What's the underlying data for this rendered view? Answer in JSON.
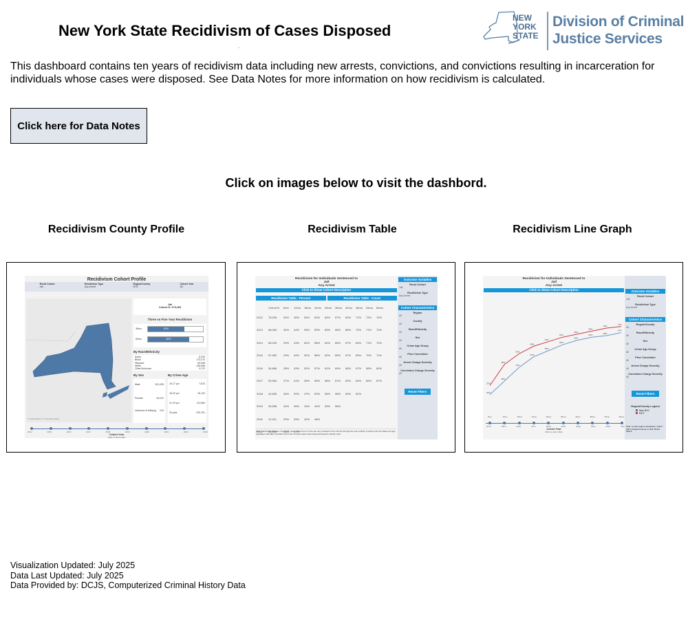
{
  "header": {
    "title": "New York State Recidivism of Cases Disposed",
    "subtitle_marker": "..",
    "logo": {
      "state_text": [
        "NEW",
        "YORK",
        "STATE"
      ],
      "agency_line1": "Division of Criminal",
      "agency_line2": "Justice Services",
      "color": "#5a7fa3"
    }
  },
  "intro": "This dashboard contains ten years of recidivism data including new arrests, convictions, and convictions resulting in incarceration for individuals whose cases were disposed. See Data Notes for more information on how recidivism is calculated.",
  "data_notes_button": "Click here for Data Notes",
  "click_hint": "Click on images below to visit the dashbord.",
  "dashboards": [
    {
      "title": "Recidivism County Profile",
      "preview": {
        "heading": "Recidivism Cohort Profile",
        "filters": [
          {
            "label": "Recid Cohort",
            "value": "Jail"
          },
          {
            "label": "Recidivism Type",
            "value": "Any Arrest"
          },
          {
            "label": "Region/County",
            "value": "NYS"
          },
          {
            "label": "Cohort Year",
            "value": "All"
          }
        ],
        "cohort_box": {
          "line1": "Jail",
          "line2": "Cohort N: 375,265"
        },
        "three_vs_five_title": "Three vs Five Year Recidivism",
        "bars": [
          {
            "label": "36mo",
            "value": "62%",
            "pct": 62
          },
          {
            "label": "60mo",
            "value": "69%",
            "pct": 69
          }
        ],
        "race_title": "By Race/Ethnicity",
        "race": [
          {
            "label": "Asian",
            "value": "8,229"
          },
          {
            "label": "Black",
            "value": "173,270"
          },
          {
            "label": "Hispanic",
            "value": "84,938"
          },
          {
            "label": "White",
            "value": "105,658"
          },
          {
            "label": "Other/Unknown",
            "value": "3,170"
          }
        ],
        "sex_title": "By Sex",
        "sex": [
          {
            "label": "Male",
            "value": "321,035"
          },
          {
            "label": "Female",
            "value": "54,011"
          },
          {
            "label": "Unknown & Missing",
            "value": "219"
          }
        ],
        "age_title": "By Crime Age",
        "age": [
          {
            "label": "16-17 yrs",
            "value": "7,810"
          },
          {
            "label": "18-20 yrs",
            "value": "26,120"
          },
          {
            "label": "21-29 yrs",
            "value": "111,584"
          },
          {
            "label": "30 plus",
            "value": "229,751"
          }
        ],
        "years": [
          "2014",
          "2015",
          "2016",
          "2017",
          "2018",
          "2019",
          "2020",
          "2021",
          "2022",
          "2023"
        ],
        "axis_title": "Cohort Year",
        "axis_hint": "Click on dot to filter",
        "map_credit": "© 2025 Mapbox © OpenStreetMap",
        "map_color": "#4e79a7"
      }
    },
    {
      "title": "Recidivism Table",
      "preview": {
        "heading_lines": [
          "Recidivism for Individuals Sentenced to",
          "Jail",
          "Any Arrest"
        ],
        "cohort_bar": "Click to Show Cohort Description",
        "tab_percent": "Recidivism Table - Percent",
        "tab_count": "Recidivism Table - Count",
        "columns": [
          "",
          "Cohort N",
          "6mo",
          "12mo",
          "18mo",
          "24mo",
          "30mo",
          "36mo",
          "42mo",
          "48mo",
          "54mo",
          "60mo"
        ],
        "rows": [
          [
            "2012",
            "75,005",
            "30%",
            "45%",
            "54%",
            "60%",
            "64%",
            "67%",
            "69%",
            "71%",
            "72%",
            "74%"
          ],
          [
            "2013",
            "68,083",
            "30%",
            "44%",
            "53%",
            "59%",
            "63%",
            "66%",
            "68%",
            "70%",
            "71%",
            "72%"
          ],
          [
            "2014",
            "65,029",
            "29%",
            "43%",
            "52%",
            "58%",
            "62%",
            "65%",
            "67%",
            "69%",
            "71%",
            "72%"
          ],
          [
            "2015",
            "57,962",
            "29%",
            "44%",
            "52%",
            "58%",
            "62%",
            "65%",
            "67%",
            "69%",
            "70%",
            "71%"
          ],
          [
            "2016",
            "54,866",
            "28%",
            "43%",
            "52%",
            "57%",
            "61%",
            "64%",
            "66%",
            "67%",
            "68%",
            "69%"
          ],
          [
            "2017",
            "50,984",
            "27%",
            "41%",
            "49%",
            "55%",
            "58%",
            "61%",
            "62%",
            "64%",
            "65%",
            "67%"
          ],
          [
            "2018",
            "42,690",
            "26%",
            "39%",
            "47%",
            "52%",
            "55%",
            "58%",
            "60%",
            "62%",
            "",
            ""
          ],
          [
            "2019",
            "35,965",
            "24%",
            "35%",
            "43%",
            "49%",
            "53%",
            "56%",
            "",
            "",
            "",
            ""
          ],
          [
            "2020",
            "12,311",
            "20%",
            "33%",
            "42%",
            "48%",
            "",
            "",
            "",
            "",
            "",
            ""
          ],
          [
            "2021",
            "15,059",
            "23%",
            "37%",
            "",
            "",
            "",
            "",
            "",
            "",
            "",
            ""
          ]
        ],
        "note": "Note: Individuals between 16 and 17 years old at time of crime are only included in the cohorts through the end of 2019, at which point the Raise the Age legislation had taken full effect and most of these cases were being processed in family court.",
        "sidebar": {
          "outcome_header": "Outcome Variables",
          "outcome": [
            {
              "label": "Recid Cohort",
              "value": "Jail"
            },
            {
              "label": "Recidivism Type",
              "value": "Any Arrest"
            }
          ],
          "cohort_header": "Cohort Characteristics",
          "filters": [
            {
              "label": "Region",
              "value": "All"
            },
            {
              "label": "County",
              "value": "All"
            },
            {
              "label": "Race/Ethnicity",
              "value": "All"
            },
            {
              "label": "Sex",
              "value": "All"
            },
            {
              "label": "Crime Age Group",
              "value": "All"
            },
            {
              "label": "Prior Conviction",
              "value": "All"
            },
            {
              "label": "Arrest Charge Severity",
              "value": "All"
            },
            {
              "label": "Conviction Charge Severity",
              "value": "All"
            }
          ],
          "reset": "Reset Filters"
        }
      }
    },
    {
      "title": "Recidivism Line Graph",
      "preview": {
        "heading_lines": [
          "Recidivism for Individuals Sentenced to",
          "Jail",
          "Any Arrest"
        ],
        "cohort_bar": "Click to Show Cohort Description",
        "x_labels": [
          "6mo",
          "12mo",
          "18mo",
          "24mo",
          "30mo",
          "36mo",
          "42mo",
          "48mo",
          "54mo",
          "60mo"
        ],
        "series": [
          {
            "name": "NYC",
            "color": "#d0393f",
            "values": [
              32,
              46,
              53,
              58,
              61,
              64,
              66,
              68,
              70,
              71
            ],
            "labels": [
              "32%",
              "46%",
              "53%",
              "58%",
              "61%",
              "64%",
              "66%",
              "68%",
              "70%",
              "71%"
            ]
          },
          {
            "name": "Non-NYC",
            "color": "#6f96c8",
            "values": [
              26,
              35,
              44,
              51,
              55,
              59,
              62,
              64,
              65,
              67
            ],
            "labels": [
              "26%",
              "35%",
              "44%",
              "51%",
              "55%",
              "59%",
              "62%",
              "64%",
              "65%",
              "67%"
            ]
          }
        ],
        "years": [
          "2014",
          "2015",
          "2016",
          "2017",
          "2018",
          "2019",
          "2020",
          "2021",
          "2022",
          "2023"
        ],
        "axis_title": "Cohort Year",
        "axis_hint": "Click on dot to filter",
        "sidebar": {
          "outcome_header": "Outcome Variables",
          "outcome": [
            {
              "label": "Recid Cohort",
              "value": "Jail"
            },
            {
              "label": "Recidivism Type",
              "value": "Any Arrest"
            }
          ],
          "cohort_header": "Cohort Characteristics",
          "filters": [
            {
              "label": "Region/County",
              "value": "All"
            },
            {
              "label": "Race/Ethnicity",
              "value": "All"
            },
            {
              "label": "Sex",
              "value": "All"
            },
            {
              "label": "Crime Age Group",
              "value": "All"
            },
            {
              "label": "Prior Conviction",
              "value": "All"
            },
            {
              "label": "Arrest Charge Severity",
              "value": "All"
            },
            {
              "label": "Conviction Charge Severity",
              "value": "All"
            }
          ],
          "reset": "Reset Filters",
          "legend_title": "Region/County Legend",
          "legend": [
            {
              "label": "Non-NYC",
              "color": "#4e79a7"
            },
            {
              "label": "NYC",
              "color": "#d0393f"
            }
          ],
          "note": "Note: to view region comparison, select \"(All) in Region/County or click \"Reset Filters\""
        }
      }
    }
  ],
  "footer": {
    "viz_updated": "Visualization Updated: July 2025",
    "data_updated": "Data Last Updated: July 2025",
    "provided_by": "Data Provided by: DCJS, Computerized Criminal History Data"
  }
}
